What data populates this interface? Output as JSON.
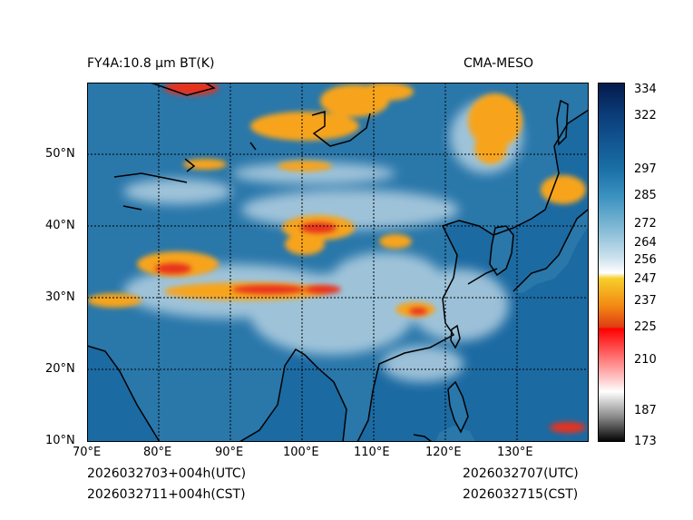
{
  "header": {
    "left_title": "FY4A:10.8 µm BT(K)",
    "right_title": "CMA-MESO"
  },
  "map": {
    "lon_labels": [
      "70°E",
      "80°E",
      "90°E",
      "100°E",
      "110°E",
      "120°E",
      "130°E"
    ],
    "lat_labels": [
      "10°N",
      "20°N",
      "30°N",
      "40°N",
      "50°N"
    ],
    "colors": {
      "ocean": "#1c6aa2",
      "land": "#2a77aa",
      "cold_cloud": "#f7a41c",
      "very_cold": "#e8301e",
      "high_cloud": "#bcd6e5",
      "coast": "#000000",
      "grid": "#000000"
    }
  },
  "colorbar": {
    "tick_labels": [
      "334",
      "322",
      "297",
      "285",
      "272",
      "264",
      "256",
      "247",
      "237",
      "225",
      "210",
      "187",
      "173"
    ],
    "colors": [
      "#051a4a",
      "#0a3d7a",
      "#1a6fa6",
      "#3d93c0",
      "#8ec0d9",
      "#cfe3ee",
      "#ffffff",
      "#f6cf2a",
      "#f28a14",
      "#e03d14",
      "#ff0000",
      "#ffd0d0",
      "#ffffff",
      "#8a8a8a",
      "#000000"
    ]
  },
  "footer": {
    "init_utc": "2026032703+004h(UTC)",
    "init_cst": "2026032711+004h(CST)",
    "valid_utc": "2026032707(UTC)",
    "valid_cst": "2026032715(CST)"
  }
}
